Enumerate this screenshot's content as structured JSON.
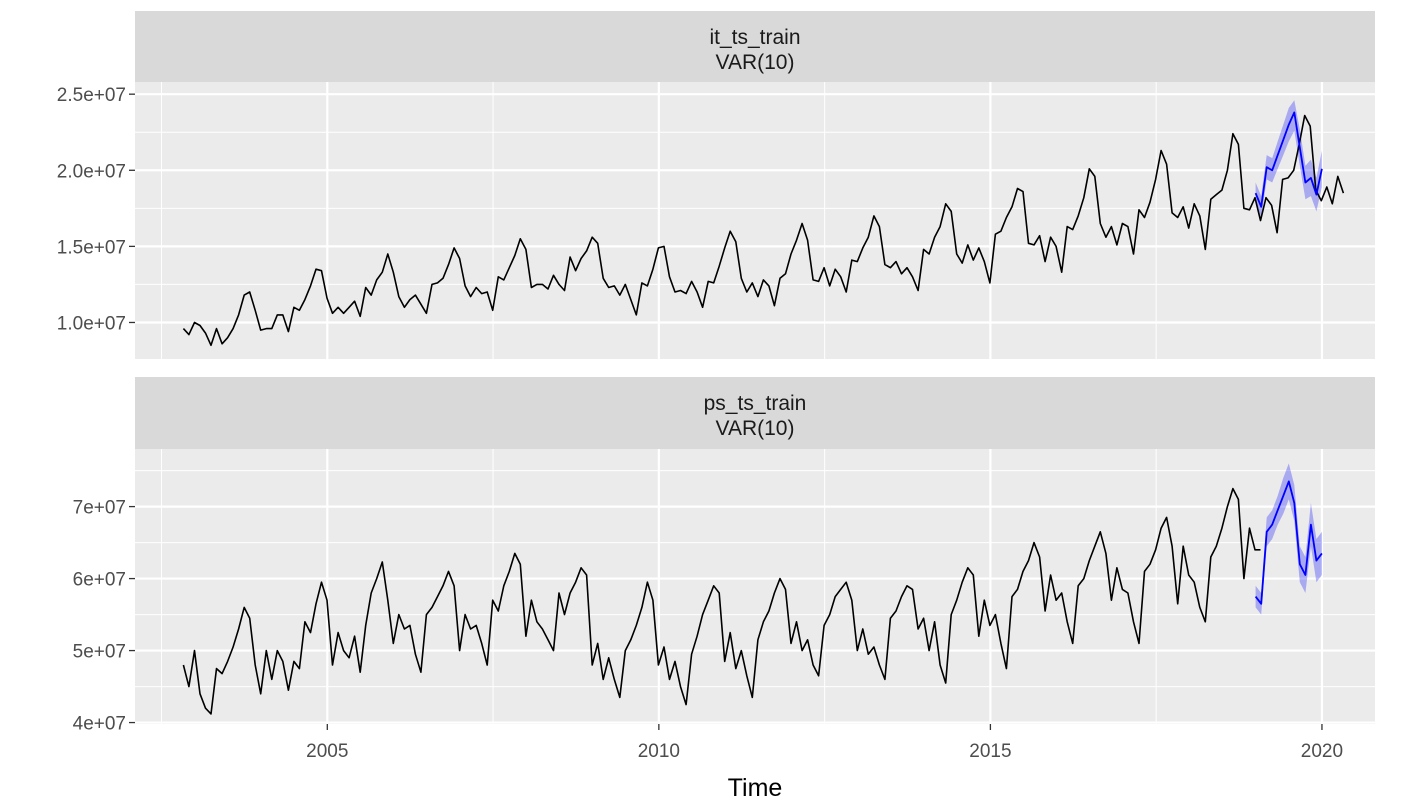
{
  "chart_data": {
    "type": "line",
    "xlabel": "Time",
    "x_ticks": [
      2005,
      2010,
      2015,
      2020
    ],
    "xlim": [
      2002.1,
      2020.8
    ],
    "grid": true,
    "colors": {
      "panel_background": "#ebebeb",
      "strip_background": "#d9d9d9",
      "grid": "#ffffff",
      "observed": "#000000",
      "forecast": "#0000ff",
      "forecast_band": "#0000ff"
    },
    "panels": [
      {
        "strip_line1": "it_ts_train",
        "strip_line2": "VAR(10)",
        "ylim": [
          7600000,
          25800000
        ],
        "y_ticks": [
          10000000,
          15000000,
          20000000,
          25000000
        ],
        "y_tick_labels": [
          "1.0e+07",
          "1.5e+07",
          "2.0e+07",
          "2.5e+07"
        ],
        "observed": {
          "start": 2002.83,
          "step": 0.0833,
          "values": [
            9600000,
            9200000,
            10000000,
            9800000,
            9300000,
            8500000,
            9600000,
            8600000,
            9000000,
            9600000,
            10500000,
            11800000,
            12000000,
            10800000,
            9500000,
            9600000,
            9600000,
            10500000,
            10500000,
            9400000,
            11000000,
            10800000,
            11500000,
            12400000,
            13500000,
            13400000,
            11600000,
            10600000,
            11000000,
            10600000,
            11000000,
            11400000,
            10400000,
            12300000,
            11800000,
            12800000,
            13300000,
            14500000,
            13300000,
            11700000,
            11000000,
            11500000,
            11800000,
            11200000,
            10600000,
            12500000,
            12600000,
            12900000,
            13800000,
            14900000,
            14200000,
            12400000,
            11700000,
            12300000,
            11900000,
            12000000,
            10800000,
            13000000,
            12800000,
            13600000,
            14400000,
            15500000,
            14800000,
            12300000,
            12500000,
            12500000,
            12200000,
            13100000,
            12500000,
            12100000,
            14300000,
            13400000,
            14200000,
            14700000,
            15600000,
            15200000,
            12900000,
            12300000,
            12400000,
            11800000,
            12500000,
            11500000,
            10500000,
            12600000,
            12400000,
            13500000,
            14900000,
            15000000,
            13000000,
            12000000,
            12100000,
            11900000,
            12700000,
            12000000,
            11000000,
            12700000,
            12600000,
            13700000,
            14900000,
            16000000,
            15300000,
            12900000,
            12000000,
            12600000,
            11700000,
            12800000,
            12400000,
            11100000,
            12900000,
            13200000,
            14500000,
            15400000,
            16500000,
            15400000,
            12800000,
            12700000,
            13600000,
            12400000,
            13500000,
            13000000,
            12000000,
            14100000,
            14000000,
            14900000,
            15600000,
            17000000,
            16300000,
            13800000,
            13600000,
            14000000,
            13200000,
            13600000,
            13000000,
            12100000,
            14800000,
            14500000,
            15600000,
            16300000,
            17800000,
            17300000,
            14500000,
            13900000,
            15100000,
            14100000,
            14900000,
            14000000,
            12600000,
            15800000,
            16000000,
            16900000,
            17600000,
            18800000,
            18600000,
            15200000,
            15100000,
            15700000,
            14000000,
            15600000,
            15000000,
            13300000,
            16300000,
            16100000,
            17000000,
            18200000,
            20100000,
            19600000,
            16500000,
            15600000,
            16300000,
            15100000,
            16500000,
            16300000,
            14500000,
            17400000,
            16900000,
            17900000,
            19400000,
            21300000,
            20400000,
            17200000,
            16900000,
            17600000,
            16200000,
            17800000,
            17000000,
            14800000,
            18100000,
            18400000,
            18700000,
            20000000,
            22400000,
            21700000,
            17500000,
            17400000,
            18200000,
            16700000,
            18200000,
            17700000,
            15900000,
            19400000,
            19500000,
            20000000,
            21700000,
            23600000,
            22900000,
            18700000,
            18000000,
            18900000,
            17800000,
            19600000,
            18500000
          ]
        },
        "forecast": {
          "start": 2019.0,
          "step": 0.0833,
          "values": [
            18500000,
            17600000,
            20200000,
            20000000,
            21000000,
            22000000,
            23000000,
            23800000,
            21500000,
            19200000,
            19500000,
            18400000,
            20100000
          ],
          "lower": [
            17800000,
            16900000,
            19400000,
            19200000,
            20100000,
            21000000,
            21900000,
            22600000,
            20300000,
            18100000,
            18300000,
            17300000,
            18900000
          ],
          "upper": [
            19200000,
            18300000,
            21000000,
            20800000,
            21900000,
            23000000,
            24100000,
            24600000,
            22700000,
            20300000,
            20700000,
            19500000,
            21300000
          ]
        }
      },
      {
        "strip_line1": "ps_ts_train",
        "strip_line2": "VAR(10)",
        "ylim": [
          39800000,
          78000000
        ],
        "y_ticks": [
          40000000,
          50000000,
          60000000,
          70000000
        ],
        "y_tick_labels": [
          "4e+07",
          "5e+07",
          "6e+07",
          "7e+07"
        ],
        "observed": {
          "start": 2002.83,
          "step": 0.0833,
          "values": [
            48000000,
            45000000,
            50000000,
            44000000,
            42000000,
            41200000,
            47500000,
            46800000,
            48500000,
            50500000,
            53000000,
            56000000,
            54500000,
            48000000,
            44000000,
            50000000,
            46000000,
            50000000,
            48500000,
            44500000,
            48500000,
            47500000,
            54000000,
            52500000,
            56500000,
            59500000,
            57000000,
            48000000,
            52500000,
            50000000,
            49000000,
            52000000,
            47000000,
            53500000,
            58000000,
            60000000,
            62300000,
            57000000,
            51000000,
            55000000,
            53000000,
            53500000,
            49500000,
            47000000,
            55000000,
            56000000,
            57500000,
            59000000,
            61000000,
            59000000,
            50000000,
            55000000,
            53000000,
            53500000,
            51000000,
            48000000,
            57000000,
            55500000,
            59000000,
            61000000,
            63500000,
            62000000,
            52000000,
            57000000,
            54000000,
            53000000,
            51500000,
            50000000,
            58000000,
            55000000,
            58000000,
            59500000,
            61500000,
            60500000,
            48000000,
            51000000,
            46000000,
            49000000,
            46000000,
            43500000,
            50000000,
            51500000,
            53500000,
            56000000,
            59500000,
            57000000,
            48000000,
            50500000,
            46000000,
            48500000,
            45000000,
            42500000,
            49500000,
            52000000,
            55000000,
            57000000,
            59000000,
            58000000,
            48500000,
            52500000,
            47500000,
            50000000,
            46500000,
            43500000,
            51500000,
            54000000,
            55500000,
            58000000,
            60000000,
            58500000,
            51000000,
            54000000,
            50000000,
            51500000,
            48000000,
            46500000,
            53500000,
            55000000,
            57500000,
            58500000,
            59500000,
            57000000,
            50000000,
            53000000,
            49500000,
            50500000,
            48000000,
            46000000,
            54500000,
            55500000,
            57500000,
            59000000,
            58500000,
            53000000,
            54500000,
            50000000,
            54000000,
            48000000,
            45500000,
            55000000,
            57000000,
            59500000,
            61500000,
            60500000,
            52000000,
            57000000,
            53500000,
            55000000,
            51000000,
            47500000,
            57500000,
            58500000,
            61000000,
            62500000,
            65000000,
            63000000,
            55500000,
            60500000,
            57000000,
            58000000,
            54000000,
            51000000,
            59000000,
            60000000,
            62500000,
            64500000,
            66500000,
            63500000,
            57000000,
            61500000,
            58500000,
            58000000,
            54000000,
            51000000,
            61000000,
            62000000,
            64000000,
            67000000,
            68500000,
            64500000,
            56500000,
            64500000,
            60500000,
            59500000,
            56000000,
            54000000,
            63000000,
            64500000,
            67000000,
            70000000,
            72500000,
            71000000,
            60000000,
            67000000,
            64000000,
            64000000
          ]
        },
        "forecast": {
          "start": 2019.0,
          "step": 0.0833,
          "values": [
            57500000,
            56500000,
            66500000,
            67500000,
            69500000,
            71500000,
            73500000,
            70500000,
            62000000,
            60500000,
            67500000,
            62500000,
            63500000
          ],
          "lower": [
            56000000,
            55000000,
            64500000,
            65500000,
            67500000,
            69000000,
            71000000,
            68000000,
            59500000,
            58000000,
            64500000,
            59500000,
            60500000
          ],
          "upper": [
            59000000,
            58000000,
            68500000,
            69500000,
            71500000,
            74000000,
            76000000,
            73000000,
            64500000,
            63000000,
            70500000,
            65500000,
            66500000
          ]
        }
      }
    ]
  }
}
